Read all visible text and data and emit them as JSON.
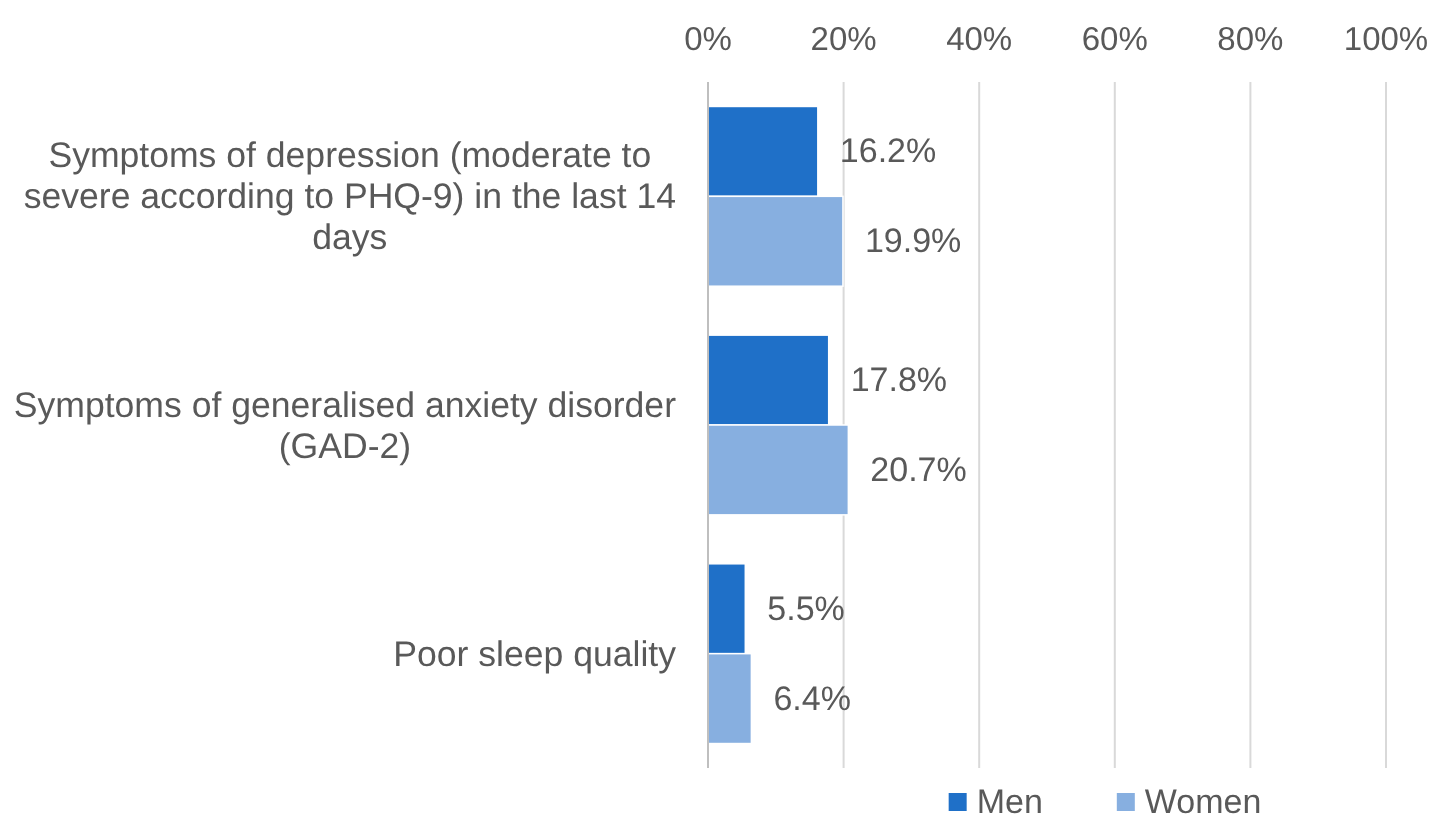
{
  "chart_data": {
    "type": "bar",
    "orientation": "horizontal",
    "categories": [
      "Symptoms of depression (moderate to severe according to PHQ-9) in the last 14 days",
      "Symptoms of generalised anxiety disorder (GAD-2)",
      "Poor sleep quality"
    ],
    "series": [
      {
        "name": "Men",
        "color": "#1f70c8",
        "values": [
          16.2,
          17.8,
          5.5
        ],
        "value_labels": [
          "16.2%",
          "17.8%",
          "5.5%"
        ]
      },
      {
        "name": "Women",
        "color": "#87afe0",
        "values": [
          19.9,
          20.7,
          6.4
        ],
        "value_labels": [
          "19.9%",
          "20.7%",
          "6.4%"
        ]
      }
    ],
    "xlim": [
      0,
      100
    ],
    "xticks": [
      {
        "value": 0,
        "label": "0%"
      },
      {
        "value": 20,
        "label": "20%"
      },
      {
        "value": 40,
        "label": "40%"
      },
      {
        "value": 60,
        "label": "60%"
      },
      {
        "value": 80,
        "label": "80%"
      },
      {
        "value": 100,
        "label": "100%"
      }
    ],
    "grid": "x",
    "legend": "bottom"
  }
}
